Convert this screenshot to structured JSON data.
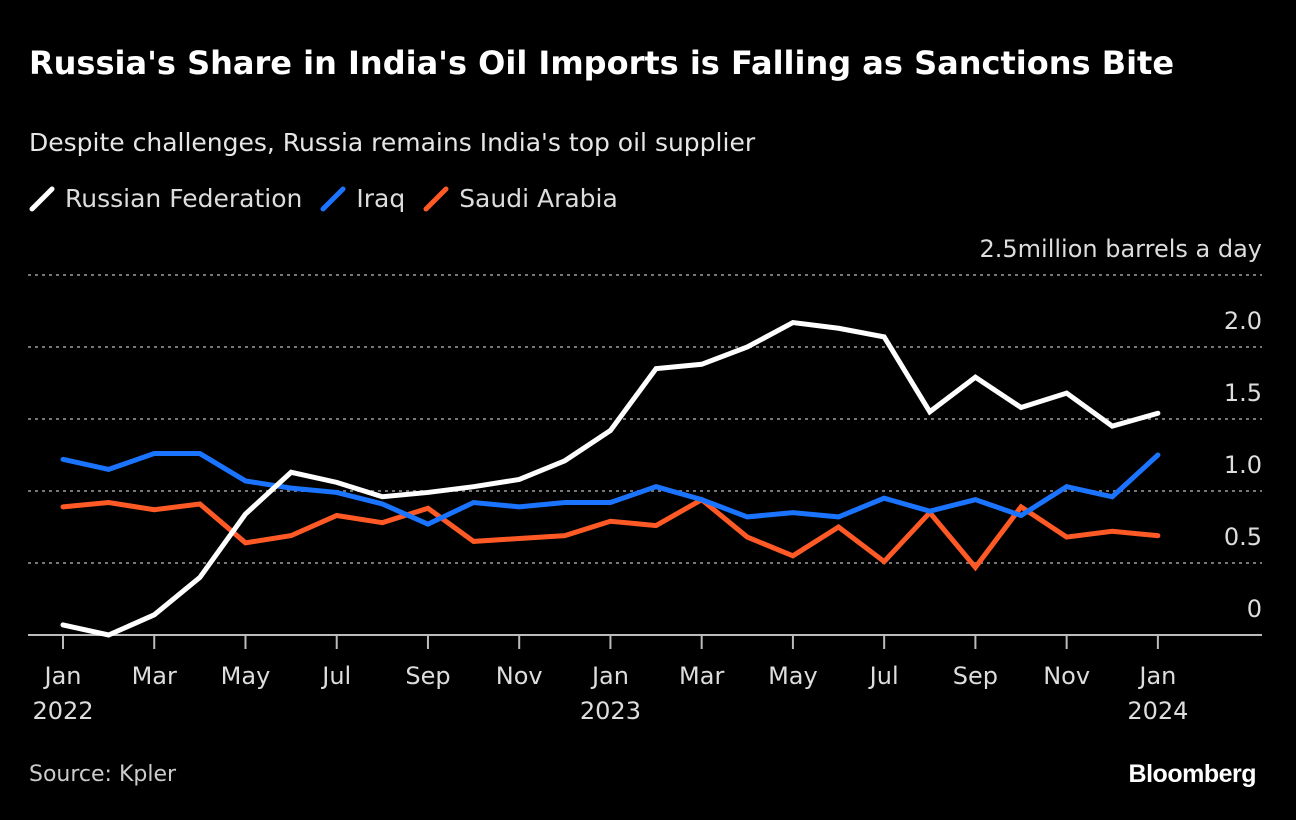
{
  "title": "Russia's Share in India's Oil Imports is Falling as Sanctions Bite",
  "subtitle": "Despite challenges, Russia remains India's top oil supplier",
  "source": "Source: Kpler",
  "logo": "Bloomberg",
  "colors": {
    "russia": "#ffffff",
    "iraq": "#1a74ff",
    "saudi": "#ff5a26",
    "grid": "#777777"
  },
  "chart_data": {
    "type": "line",
    "title": "Russia's Share in India's Oil Imports is Falling as Sanctions Bite",
    "unit_label": "2.5million barrels a day",
    "ylim": [
      0,
      2.5
    ],
    "yticks": [
      0,
      0.5,
      1.0,
      1.5,
      2.0,
      2.5
    ],
    "ytick_labels": [
      "0",
      "0.5",
      "1.0",
      "1.5",
      "2.0",
      ""
    ],
    "grid": true,
    "legend_placement": "top-left",
    "x": [
      "2022-01",
      "2022-02",
      "2022-03",
      "2022-04",
      "2022-05",
      "2022-06",
      "2022-07",
      "2022-08",
      "2022-09",
      "2022-10",
      "2022-11",
      "2022-12",
      "2023-01",
      "2023-02",
      "2023-03",
      "2023-04",
      "2023-05",
      "2023-06",
      "2023-07",
      "2023-08",
      "2023-09",
      "2023-10",
      "2023-11",
      "2023-12",
      "2024-01"
    ],
    "xtick_labels": [
      {
        "index": 0,
        "month": "Jan",
        "year": "2022"
      },
      {
        "index": 2,
        "month": "Mar",
        "year": ""
      },
      {
        "index": 4,
        "month": "May",
        "year": ""
      },
      {
        "index": 6,
        "month": "Jul",
        "year": ""
      },
      {
        "index": 8,
        "month": "Sep",
        "year": ""
      },
      {
        "index": 10,
        "month": "Nov",
        "year": ""
      },
      {
        "index": 12,
        "month": "Jan",
        "year": "2023"
      },
      {
        "index": 14,
        "month": "Mar",
        "year": ""
      },
      {
        "index": 16,
        "month": "May",
        "year": ""
      },
      {
        "index": 18,
        "month": "Jul",
        "year": ""
      },
      {
        "index": 20,
        "month": "Sep",
        "year": ""
      },
      {
        "index": 22,
        "month": "Nov",
        "year": ""
      },
      {
        "index": 24,
        "month": "Jan",
        "year": "2024"
      }
    ],
    "series": [
      {
        "name": "Russian Federation",
        "key": "russia",
        "values": [
          0.07,
          0.0,
          0.14,
          0.4,
          0.84,
          1.13,
          1.06,
          0.96,
          0.99,
          1.03,
          1.08,
          1.21,
          1.42,
          1.85,
          1.88,
          2.0,
          2.17,
          2.13,
          2.07,
          1.55,
          1.79,
          1.58,
          1.68,
          1.45,
          1.54
        ]
      },
      {
        "name": "Iraq",
        "key": "iraq",
        "values": [
          1.22,
          1.15,
          1.26,
          1.26,
          1.07,
          1.02,
          0.99,
          0.91,
          0.77,
          0.92,
          0.89,
          0.92,
          0.92,
          1.03,
          0.94,
          0.82,
          0.85,
          0.82,
          0.95,
          0.86,
          0.94,
          0.83,
          1.03,
          0.96,
          1.25
        ]
      },
      {
        "name": "Saudi Arabia",
        "key": "saudi",
        "values": [
          0.89,
          0.92,
          0.87,
          0.91,
          0.64,
          0.69,
          0.83,
          0.78,
          0.88,
          0.65,
          0.67,
          0.69,
          0.79,
          0.76,
          0.94,
          0.68,
          0.55,
          0.75,
          0.51,
          0.85,
          0.47,
          0.89,
          0.68,
          0.72,
          0.69
        ]
      }
    ]
  }
}
